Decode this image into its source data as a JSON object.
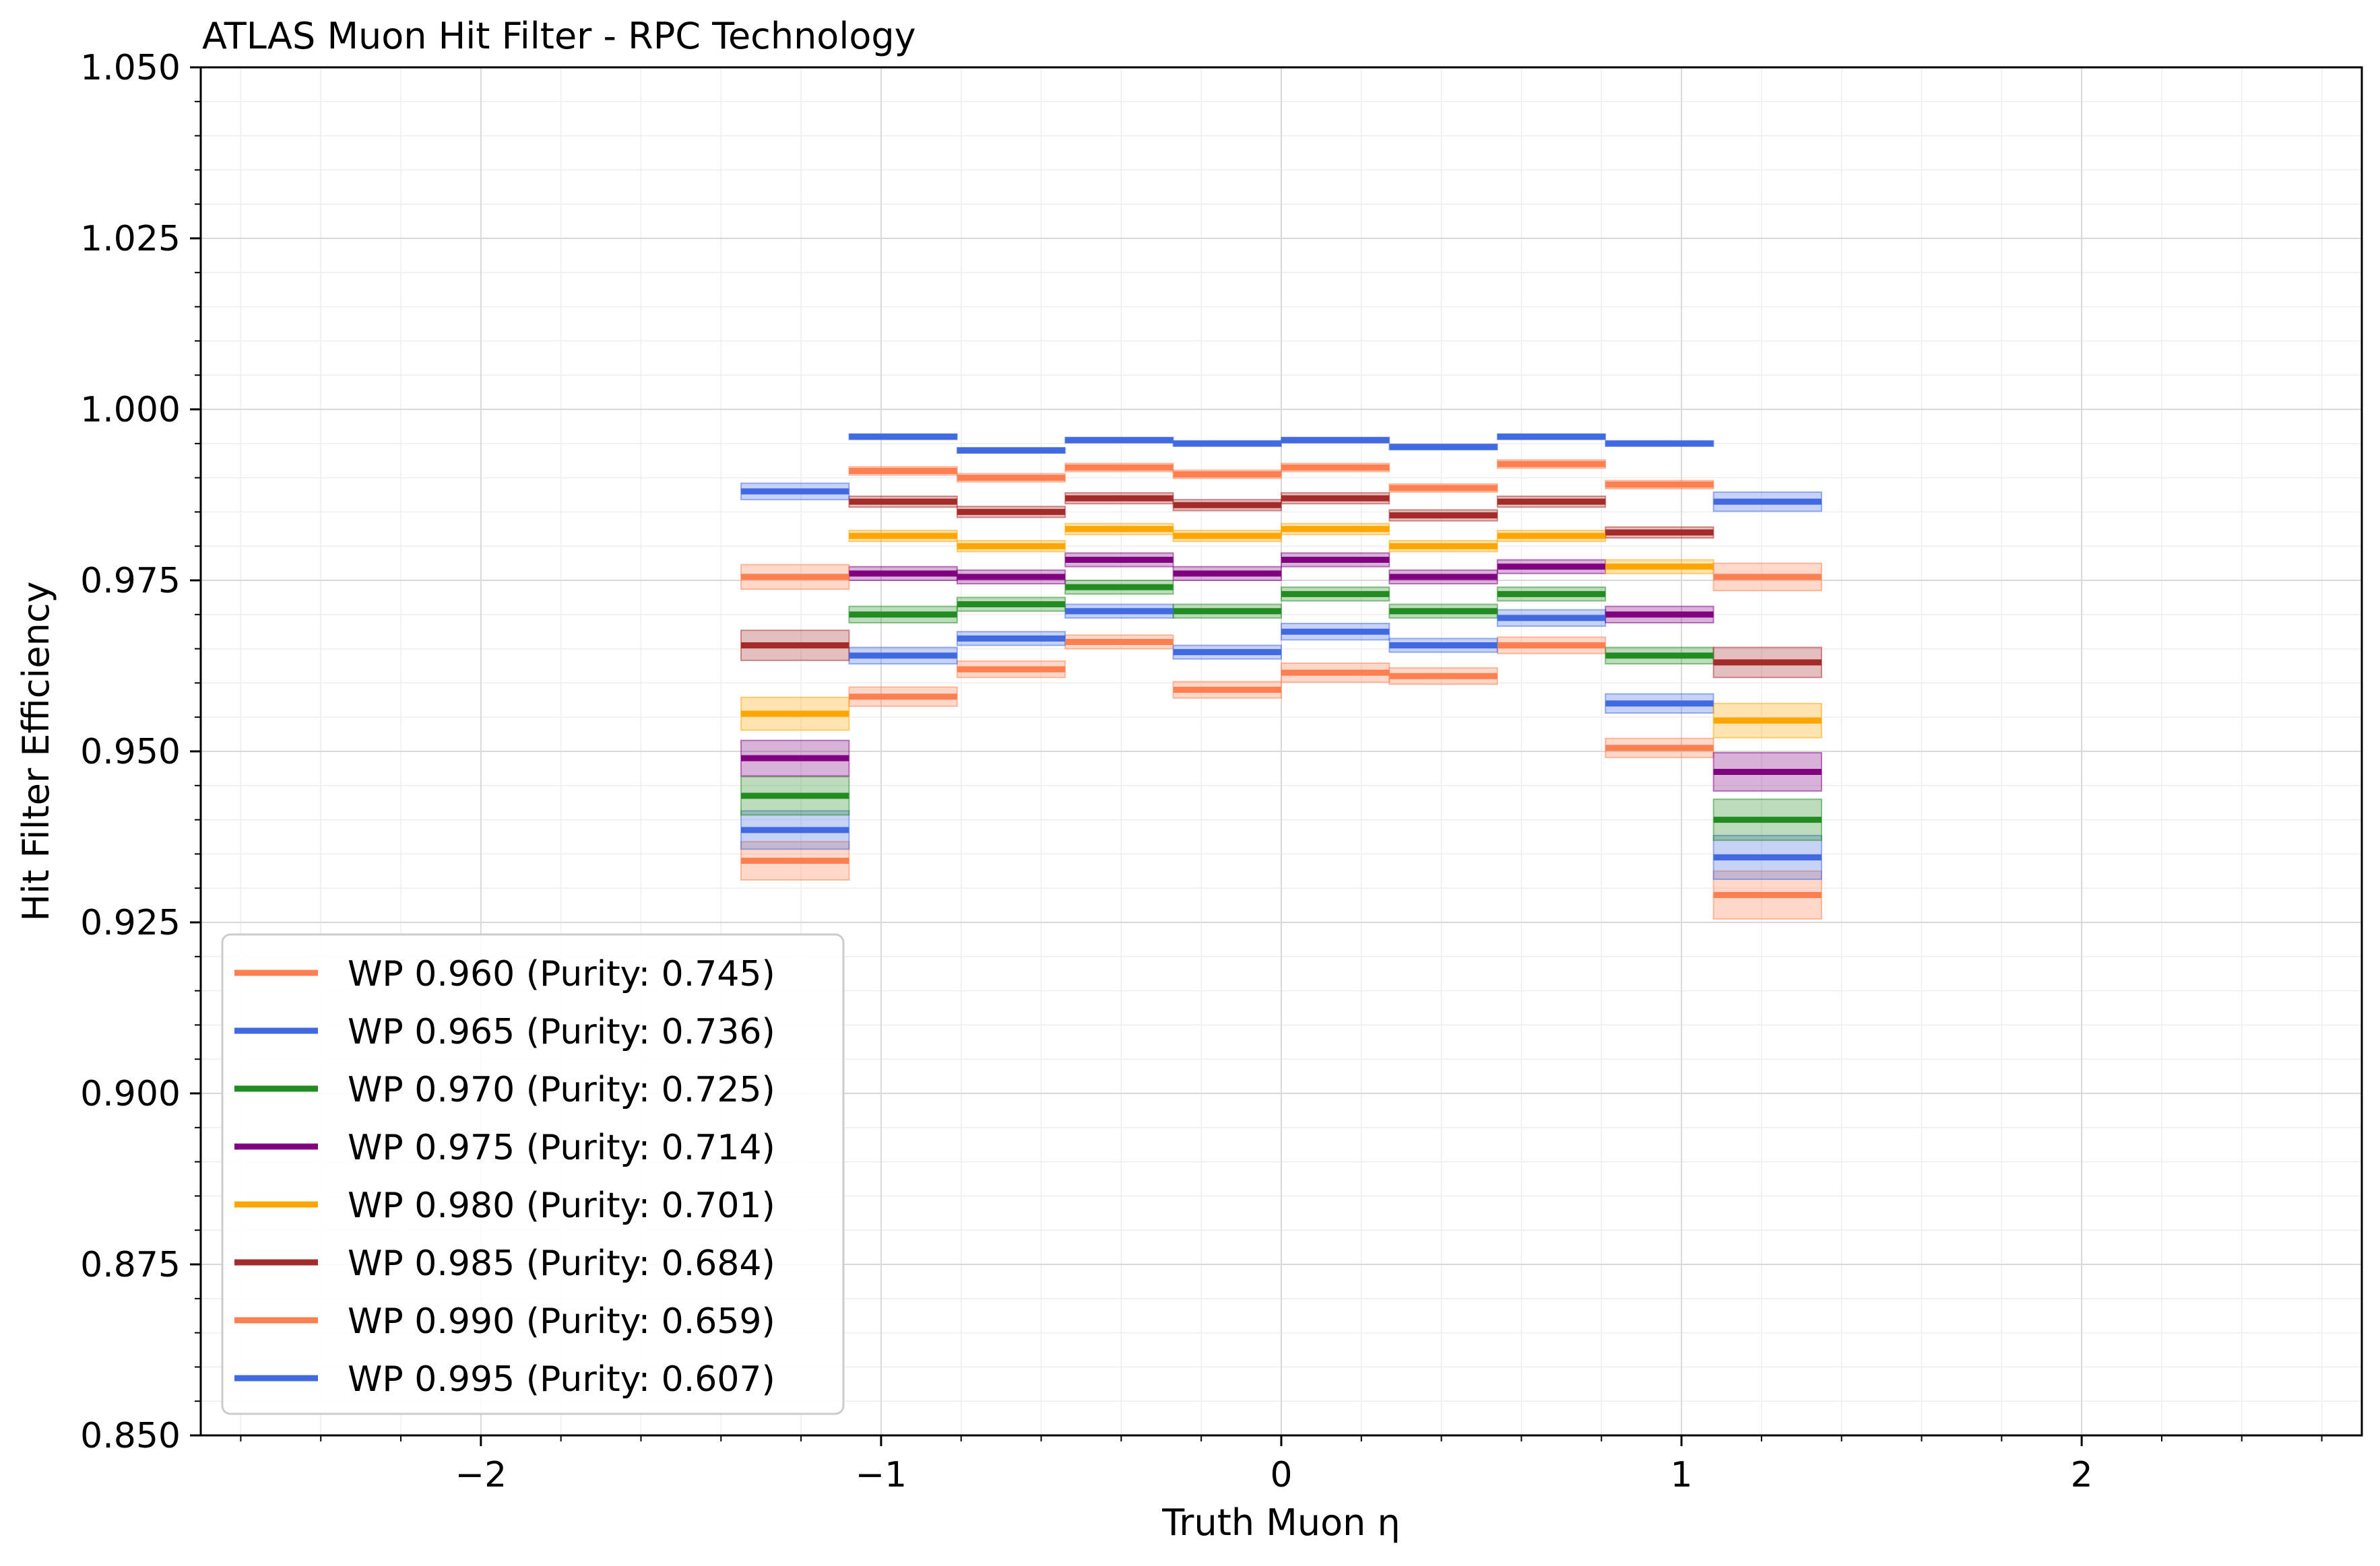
{
  "chart_data": {
    "type": "step-line",
    "title": "ATLAS Muon Hit Filter - RPC Technology",
    "xlabel": "Truth Muon η",
    "ylabel": "Hit Filter Efficiency",
    "xlim": [
      -2.7,
      2.7
    ],
    "ylim": [
      0.85,
      1.05
    ],
    "xticks": [
      -2,
      -1,
      0,
      1,
      2
    ],
    "xtick_labels": [
      "−2",
      "−1",
      "0",
      "1",
      "2"
    ],
    "yticks": [
      0.85,
      0.875,
      0.9,
      0.925,
      0.95,
      0.975,
      1.0,
      1.025,
      1.05
    ],
    "ytick_labels": [
      "0.850",
      "0.875",
      "0.900",
      "0.925",
      "0.950",
      "0.975",
      "1.000",
      "1.025",
      "1.050"
    ],
    "grid": true,
    "legend_position": "lower-left",
    "bin_edges": [
      -1.35,
      -1.08,
      -0.81,
      -0.54,
      -0.27,
      0.0,
      0.27,
      0.54,
      0.81,
      1.08,
      1.35
    ],
    "series": [
      {
        "name": "WP 0.960 (Purity: 0.745)",
        "color": "#ff7f50",
        "values": [
          0.934,
          0.958,
          0.962,
          0.966,
          0.959,
          0.9615,
          0.961,
          0.9655,
          0.9505,
          0.929
        ],
        "errors": [
          0.0028,
          0.0014,
          0.0012,
          0.001,
          0.0012,
          0.0014,
          0.0012,
          0.0012,
          0.0014,
          0.0035
        ]
      },
      {
        "name": "WP 0.965 (Purity: 0.736)",
        "color": "#4169e1",
        "values": [
          0.9385,
          0.964,
          0.9665,
          0.9705,
          0.9645,
          0.9675,
          0.9655,
          0.9695,
          0.957,
          0.9345
        ],
        "errors": [
          0.0028,
          0.0012,
          0.001,
          0.001,
          0.001,
          0.0012,
          0.001,
          0.0012,
          0.0014,
          0.0032
        ]
      },
      {
        "name": "WP 0.970 (Purity: 0.725)",
        "color": "#228b22",
        "values": [
          0.9435,
          0.97,
          0.9715,
          0.974,
          0.9705,
          0.973,
          0.9705,
          0.973,
          0.964,
          0.94
        ],
        "errors": [
          0.0028,
          0.0012,
          0.001,
          0.001,
          0.001,
          0.001,
          0.001,
          0.001,
          0.0012,
          0.003
        ]
      },
      {
        "name": "WP 0.975 (Purity: 0.714)",
        "color": "#800080",
        "values": [
          0.949,
          0.976,
          0.9755,
          0.978,
          0.976,
          0.978,
          0.9755,
          0.977,
          0.97,
          0.947
        ],
        "errors": [
          0.0026,
          0.001,
          0.001,
          0.001,
          0.001,
          0.001,
          0.001,
          0.001,
          0.0012,
          0.0028
        ]
      },
      {
        "name": "WP 0.980 (Purity: 0.701)",
        "color": "#ffa500",
        "values": [
          0.9555,
          0.9815,
          0.98,
          0.9825,
          0.9815,
          0.9825,
          0.98,
          0.9815,
          0.977,
          0.9545
        ],
        "errors": [
          0.0024,
          0.0008,
          0.0008,
          0.0008,
          0.0008,
          0.0008,
          0.0008,
          0.0008,
          0.001,
          0.0025
        ]
      },
      {
        "name": "WP 0.985 (Purity: 0.684)",
        "color": "#a52a2a",
        "values": [
          0.9655,
          0.9865,
          0.985,
          0.987,
          0.986,
          0.987,
          0.9845,
          0.9865,
          0.982,
          0.963
        ],
        "errors": [
          0.0022,
          0.0008,
          0.0008,
          0.0008,
          0.0008,
          0.0008,
          0.0008,
          0.0008,
          0.0008,
          0.0022
        ]
      },
      {
        "name": "WP 0.990 (Purity: 0.659)",
        "color": "#ff7f50",
        "values": [
          0.9755,
          0.991,
          0.99,
          0.9915,
          0.9905,
          0.9915,
          0.9885,
          0.992,
          0.989,
          0.9755
        ],
        "errors": [
          0.0018,
          0.0006,
          0.0006,
          0.0006,
          0.0006,
          0.0006,
          0.0006,
          0.0006,
          0.0006,
          0.002
        ]
      },
      {
        "name": "WP 0.995 (Purity: 0.607)",
        "color": "#4169e1",
        "values": [
          0.988,
          0.996,
          0.994,
          0.9955,
          0.995,
          0.9955,
          0.9945,
          0.996,
          0.995,
          0.9865
        ],
        "errors": [
          0.0012,
          0.0004,
          0.0004,
          0.0004,
          0.0004,
          0.0004,
          0.0004,
          0.0004,
          0.0004,
          0.0014
        ]
      }
    ]
  }
}
